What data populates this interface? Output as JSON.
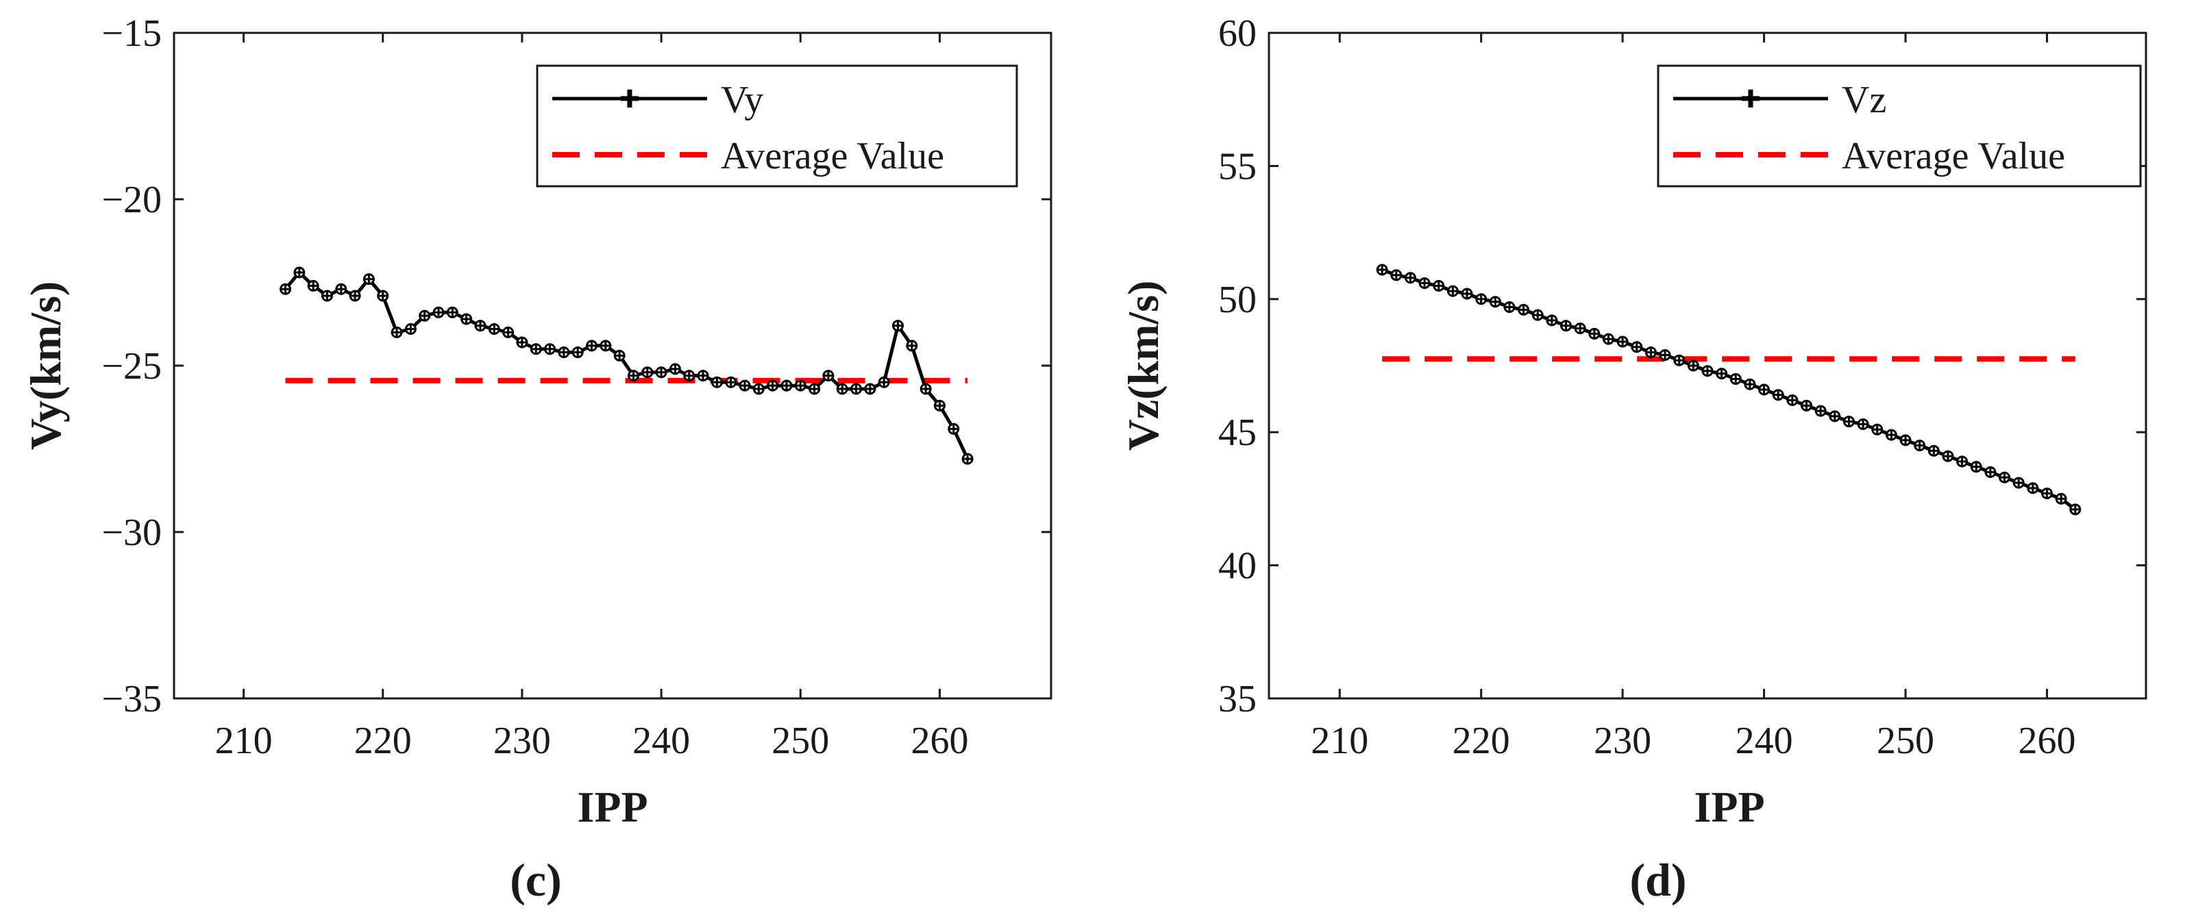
{
  "chart_data": [
    {
      "type": "line",
      "panel_label": "(c)",
      "xlabel": "IPP",
      "ylabel": "Vy(km/s)",
      "xlim": [
        205,
        268
      ],
      "ylim": [
        -35,
        -15
      ],
      "xticks": [
        210,
        220,
        230,
        240,
        250,
        260
      ],
      "yticks": [
        -35,
        -30,
        -25,
        -20,
        -15
      ],
      "xtick_labels": [
        "210",
        "220",
        "230",
        "240",
        "250",
        "260"
      ],
      "ytick_labels": [
        "−35",
        "−30",
        "−25",
        "−20",
        "−15"
      ],
      "grid": false,
      "legend_position": "top-right",
      "series": [
        {
          "name": "Vy",
          "color": "#000000",
          "style": "solid-marker",
          "x": [
            213,
            214,
            215,
            216,
            217,
            218,
            219,
            220,
            221,
            222,
            223,
            224,
            225,
            226,
            227,
            228,
            229,
            230,
            231,
            232,
            233,
            234,
            235,
            236,
            237,
            238,
            239,
            240,
            241,
            242,
            243,
            244,
            245,
            246,
            247,
            248,
            249,
            250,
            251,
            252,
            253,
            254,
            255,
            256,
            257,
            258,
            259,
            260,
            261,
            262
          ],
          "values": [
            -22.7,
            -22.2,
            -22.6,
            -22.9,
            -22.7,
            -22.9,
            -22.4,
            -22.9,
            -24.0,
            -23.9,
            -23.5,
            -23.4,
            -23.4,
            -23.6,
            -23.8,
            -23.9,
            -24.0,
            -24.3,
            -24.5,
            -24.5,
            -24.6,
            -24.6,
            -24.4,
            -24.4,
            -24.7,
            -25.3,
            -25.2,
            -25.2,
            -25.1,
            -25.3,
            -25.3,
            -25.5,
            -25.5,
            -25.6,
            -25.7,
            -25.6,
            -25.6,
            -25.6,
            -25.7,
            -25.3,
            -25.7,
            -25.7,
            -25.7,
            -25.5,
            -23.8,
            -24.4,
            -25.7,
            -26.2,
            -26.9,
            -27.8
          ]
        },
        {
          "name": "Average Value",
          "color": "#ff0000",
          "style": "dashed",
          "x": [
            213,
            262
          ],
          "values": [
            -25.45,
            -25.45
          ]
        }
      ]
    },
    {
      "type": "line",
      "panel_label": "(d)",
      "xlabel": "IPP",
      "ylabel": "Vz(km/s)",
      "xlim": [
        205,
        267
      ],
      "ylim": [
        35,
        60
      ],
      "xticks": [
        210,
        220,
        230,
        240,
        250,
        260
      ],
      "yticks": [
        35,
        40,
        45,
        50,
        55,
        60
      ],
      "xtick_labels": [
        "210",
        "220",
        "230",
        "240",
        "250",
        "260"
      ],
      "ytick_labels": [
        "35",
        "40",
        "45",
        "50",
        "55",
        "60"
      ],
      "grid": false,
      "legend_position": "top-right",
      "series": [
        {
          "name": "Vz",
          "color": "#000000",
          "style": "solid-marker",
          "x": [
            213,
            214,
            215,
            216,
            217,
            218,
            219,
            220,
            221,
            222,
            223,
            224,
            225,
            226,
            227,
            228,
            229,
            230,
            231,
            232,
            233,
            234,
            235,
            236,
            237,
            238,
            239,
            240,
            241,
            242,
            243,
            244,
            245,
            246,
            247,
            248,
            249,
            250,
            251,
            252,
            253,
            254,
            255,
            256,
            257,
            258,
            259,
            260,
            261,
            262
          ],
          "values": [
            51.1,
            50.9,
            50.8,
            50.6,
            50.5,
            50.3,
            50.2,
            50.0,
            49.9,
            49.7,
            49.6,
            49.4,
            49.2,
            49.0,
            48.9,
            48.7,
            48.5,
            48.4,
            48.2,
            48.0,
            47.9,
            47.7,
            47.5,
            47.3,
            47.2,
            47.0,
            46.8,
            46.6,
            46.4,
            46.2,
            46.0,
            45.8,
            45.6,
            45.4,
            45.3,
            45.1,
            44.9,
            44.7,
            44.5,
            44.3,
            44.1,
            43.9,
            43.7,
            43.5,
            43.3,
            43.1,
            42.9,
            42.7,
            42.5,
            42.1
          ]
        },
        {
          "name": "Average Value",
          "color": "#ff0000",
          "style": "dashed",
          "x": [
            213,
            262
          ],
          "values": [
            47.75,
            47.75
          ]
        }
      ]
    }
  ]
}
